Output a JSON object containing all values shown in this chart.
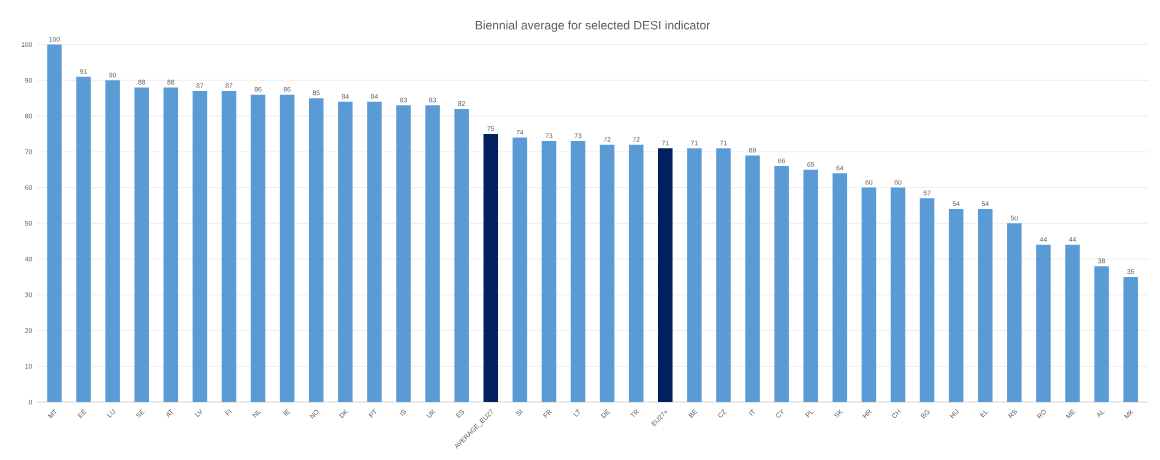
{
  "chart_data": {
    "type": "bar",
    "title": "Biennial average for selected DESI indicator",
    "categories": [
      "MT",
      "EE",
      "LU",
      "SE",
      "AT",
      "LV",
      "FI",
      "NL",
      "IE",
      "NO",
      "DK",
      "PT",
      "IS",
      "UK",
      "ES",
      "AVERAGE_EU27",
      "SI",
      "FR",
      "LT",
      "DE",
      "TR",
      "EU27+",
      "BE",
      "CZ",
      "IT",
      "CY",
      "PL",
      "SK",
      "HR",
      "CH",
      "BG",
      "HU",
      "EL",
      "RS",
      "RO",
      "ME",
      "AL",
      "MK"
    ],
    "values": [
      100,
      91,
      90,
      88,
      88,
      87,
      87,
      86,
      86,
      85,
      84,
      84,
      83,
      83,
      82,
      75,
      74,
      73,
      73,
      72,
      72,
      71,
      71,
      71,
      69,
      66,
      65,
      64,
      60,
      60,
      57,
      54,
      54,
      50,
      44,
      44,
      38,
      35
    ],
    "colors": [
      "#5b9bd5",
      "#5b9bd5",
      "#5b9bd5",
      "#5b9bd5",
      "#5b9bd5",
      "#5b9bd5",
      "#5b9bd5",
      "#5b9bd5",
      "#5b9bd5",
      "#5b9bd5",
      "#5b9bd5",
      "#5b9bd5",
      "#5b9bd5",
      "#5b9bd5",
      "#5b9bd5",
      "#002060",
      "#5b9bd5",
      "#5b9bd5",
      "#5b9bd5",
      "#5b9bd5",
      "#5b9bd5",
      "#002060",
      "#5b9bd5",
      "#5b9bd5",
      "#5b9bd5",
      "#5b9bd5",
      "#5b9bd5",
      "#5b9bd5",
      "#5b9bd5",
      "#5b9bd5",
      "#5b9bd5",
      "#5b9bd5",
      "#5b9bd5",
      "#5b9bd5",
      "#5b9bd5",
      "#5b9bd5",
      "#5b9bd5",
      "#5b9bd5"
    ],
    "ylim": [
      0,
      100
    ],
    "yticks": [
      0,
      10,
      20,
      30,
      40,
      50,
      60,
      70,
      80,
      90,
      100
    ],
    "grid": "y",
    "data_labels": true
  }
}
